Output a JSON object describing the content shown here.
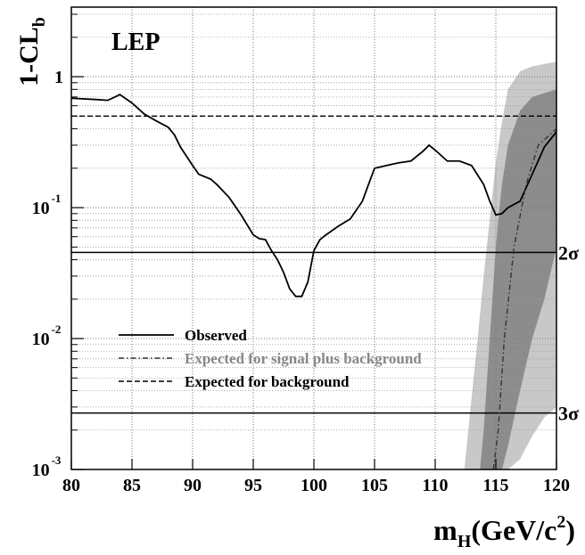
{
  "chart_data": {
    "type": "line",
    "label": "LEP",
    "y_label": "1-CL",
    "y_label_sub": "b",
    "x_label": {
      "main": "m",
      "sub": "H",
      "rest": "(GeV/c",
      "sup": "2",
      "end": ")"
    },
    "xlim": [
      80,
      120
    ],
    "xticks": [
      80,
      85,
      90,
      95,
      100,
      105,
      110,
      115,
      120
    ],
    "ylim": [
      0.001,
      3.4
    ],
    "log_y": true,
    "grid": true,
    "yticks": [
      {
        "value": 0.001,
        "label": "10",
        "exponent": "-3"
      },
      {
        "value": 0.01,
        "label": "10",
        "exponent": "-2"
      },
      {
        "value": 0.1,
        "label": "10",
        "exponent": "-1"
      },
      1
    ],
    "y_minor_ticks": [
      0.002,
      0.003,
      0.004,
      0.005,
      0.006,
      0.007,
      0.008,
      0.009,
      0.02,
      0.03,
      0.04,
      0.05,
      0.06,
      0.07,
      0.08,
      0.09,
      0.2,
      0.3,
      0.4,
      0.5,
      0.6,
      0.7,
      0.8,
      0.9,
      2,
      3
    ],
    "annotations": [
      {
        "text": "2σ",
        "value": 0.0455
      },
      {
        "text": "3σ",
        "value": 0.0027
      }
    ],
    "bands": [
      {
        "color": "#c8c8c8",
        "x": [
          112.4,
          113,
          113.5,
          114,
          114.6,
          115,
          115.5,
          116,
          117,
          118,
          119,
          120
        ],
        "upper": [
          0.001,
          0.0035,
          0.01,
          0.03,
          0.1,
          0.22,
          0.45,
          0.8,
          1.1,
          1.2,
          1.25,
          1.3
        ],
        "lower": [
          0.001,
          0.001,
          0.001,
          0.001,
          0.001,
          0.001,
          0.001,
          0.001,
          0.0012,
          0.0018,
          0.0025,
          0.003
        ]
      },
      {
        "color": "#8c8c8c",
        "x": [
          113.7,
          114,
          114.5,
          115,
          115.3,
          115.5,
          116,
          117,
          118,
          119,
          120
        ],
        "upper": [
          0.001,
          0.002,
          0.01,
          0.05,
          0.1,
          0.15,
          0.3,
          0.55,
          0.7,
          0.75,
          0.8
        ],
        "lower": [
          0.001,
          0.001,
          0.001,
          0.001,
          0.001,
          0.001,
          0.0015,
          0.004,
          0.01,
          0.02,
          0.05
        ]
      }
    ],
    "series": [
      {
        "name": "Observed",
        "color": "#000000",
        "style": "solid",
        "x": [
          80,
          82,
          83,
          84,
          85,
          86,
          87,
          88,
          88.5,
          89,
          90,
          90.5,
          91.5,
          92,
          93,
          94,
          95,
          95.5,
          96,
          96.5,
          97,
          97.5,
          98,
          98.5,
          99,
          99.5,
          100,
          100.5,
          101,
          102,
          103,
          104,
          104.5,
          105,
          106,
          107,
          108,
          109,
          109.5,
          110,
          111,
          112,
          113,
          114,
          114.5,
          115,
          115.5,
          116,
          117,
          118,
          119,
          120
        ],
        "values": [
          0.685,
          0.67,
          0.66,
          0.73,
          0.63,
          0.52,
          0.46,
          0.41,
          0.36,
          0.29,
          0.21,
          0.18,
          0.165,
          0.15,
          0.12,
          0.088,
          0.062,
          0.058,
          0.057,
          0.047,
          0.04,
          0.032,
          0.024,
          0.021,
          0.021,
          0.027,
          0.047,
          0.057,
          0.062,
          0.072,
          0.082,
          0.112,
          0.15,
          0.2,
          0.21,
          0.22,
          0.227,
          0.27,
          0.3,
          0.275,
          0.227,
          0.227,
          0.21,
          0.15,
          0.112,
          0.088,
          0.09,
          0.1,
          0.112,
          0.18,
          0.29,
          0.38
        ]
      },
      {
        "name": "Expected for signal plus background",
        "color": "#333333",
        "text_color": "#888888",
        "style": "dashdot",
        "x": [
          114.8,
          115.2,
          115.7,
          116.5,
          117.5,
          118.5,
          120
        ],
        "values": [
          0.001,
          0.002,
          0.01,
          0.05,
          0.15,
          0.3,
          0.4
        ]
      },
      {
        "name": "Expected for background",
        "color": "#000000",
        "style": "dashed",
        "x": [
          80,
          120
        ],
        "values": [
          0.5,
          0.5
        ]
      }
    ]
  }
}
